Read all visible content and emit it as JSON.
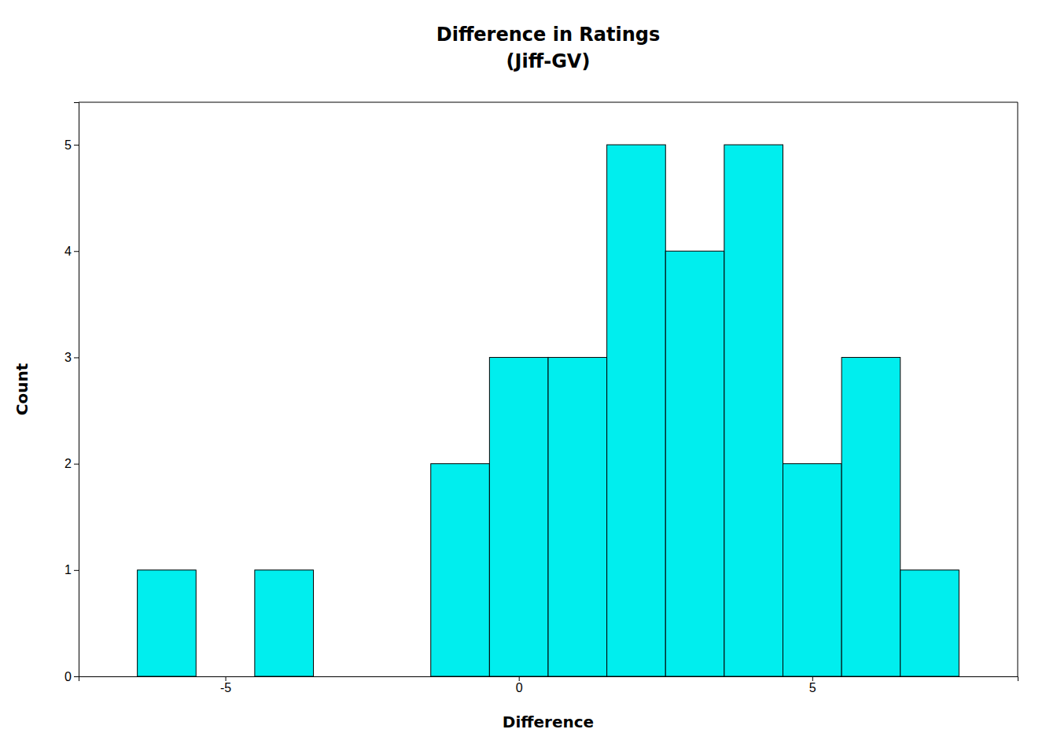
{
  "chart_data": {
    "type": "bar",
    "title": "Difference in Ratings",
    "subtitle": "(Jiff-GV)",
    "x_label": "Difference",
    "y_label": "Count",
    "x": [
      -6,
      -4,
      -1,
      0,
      1,
      2,
      3,
      4,
      5,
      6,
      7
    ],
    "values": [
      1,
      1,
      2,
      3,
      3,
      5,
      4,
      5,
      2,
      3,
      1
    ],
    "bin_width": 1,
    "color": "#00EEEE",
    "xlim": [
      -7.5,
      8.5
    ],
    "ylim": [
      0,
      5.4
    ],
    "xticks": [
      -5,
      0,
      5
    ],
    "yticks": [
      0,
      1,
      2,
      3,
      4,
      5
    ],
    "grid": false
  }
}
